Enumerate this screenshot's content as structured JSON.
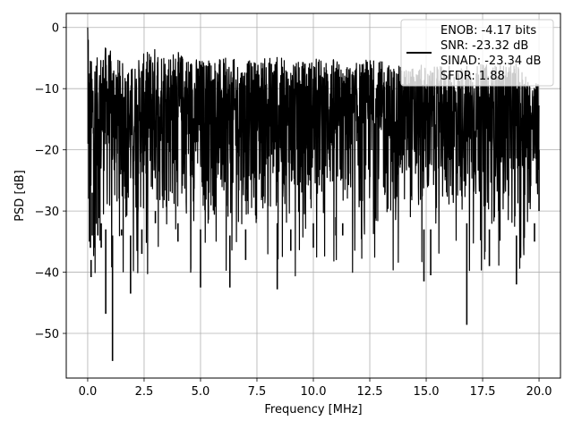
{
  "chart_data": {
    "type": "line",
    "title": "",
    "xlabel": "Frequency [MHz]",
    "ylabel": "PSD [dB]",
    "xlim": [
      -0.95,
      20.95
    ],
    "ylim": [
      -57.3,
      2.3
    ],
    "x_ticks": [
      0.0,
      2.5,
      5.0,
      7.5,
      10.0,
      12.5,
      15.0,
      17.5,
      20.0
    ],
    "x_tick_labels": [
      "0.0",
      "2.5",
      "5.0",
      "7.5",
      "10.0",
      "12.5",
      "15.0",
      "17.5",
      "20.0"
    ],
    "y_ticks": [
      0,
      -10,
      -20,
      -30,
      -40,
      -50
    ],
    "y_tick_labels": [
      "0",
      "−10",
      "−20",
      "−30",
      "−40",
      "−50"
    ],
    "grid": true,
    "legend_placement": "top-right",
    "legend_entries": [
      "ENOB: -4.17 bits",
      "SNR: -23.32 dB",
      "SINAD: -23.34 dB",
      "SFDR: 1.88"
    ],
    "line_color": "#000000",
    "grid_color": "#b0b0b0",
    "series": [
      {
        "x": [
          0.0,
          0.02,
          0.05,
          0.08,
          0.12,
          0.15,
          0.2,
          0.3,
          0.45,
          0.6,
          0.8,
          1.1,
          1.5,
          1.9,
          2.4,
          3.0,
          4.0,
          5.0,
          6.3,
          7.0,
          8.4,
          9.0,
          10.0,
          11.0,
          11.3,
          12.5,
          14.0,
          14.9,
          15.2,
          16.8,
          17.8,
          19.0,
          19.8,
          20.0
        ],
        "y": [
          0.0,
          -2.0,
          -13.0,
          -20.0,
          -16.0,
          -40.8,
          -27.0,
          -34.0,
          -18.0,
          -36.0,
          -46.8,
          -54.5,
          -34.0,
          -43.5,
          -37.0,
          -30.0,
          -35.0,
          -42.5,
          -42.5,
          -38.0,
          -42.8,
          -36.5,
          -36.0,
          -34.0,
          -34.0,
          -33.0,
          -32.0,
          -41.5,
          -40.5,
          -48.6,
          -39.0,
          -42.0,
          -35.0,
          -20.0
        ],
        "peaks": [
          0.0,
          -3.5,
          -8.0,
          -5.5,
          -4.0,
          -5.0,
          -5.5,
          -4.5,
          -5.0,
          -4.0,
          -3.0,
          -4.0,
          -5.5,
          -6.5,
          -4.5,
          -3.0,
          -4.0,
          -5.0,
          -5.0,
          -5.5,
          -4.5,
          -6.0,
          -5.0,
          -5.0,
          -6.5,
          -5.0,
          -6.5,
          -6.0,
          -6.5,
          -6.0,
          -6.0,
          -5.5,
          -9.0,
          -9.0
        ],
        "troughs": [
          0.0,
          -19.0,
          -28.0,
          -35.0,
          -36.0,
          -38.0,
          -34.0,
          -36.0,
          -34.0,
          -32.0,
          -33.0,
          -34.0,
          -33.0,
          -34.0,
          -33.0,
          -32.0,
          -32.0,
          -33.0,
          -34.0,
          -33.0,
          -32.0,
          -33.0,
          -32.0,
          -31.0,
          -32.0,
          -33.0,
          -32.0,
          -33.0,
          -33.0,
          -32.0,
          -33.0,
          -34.0,
          -32.0,
          -30.0
        ]
      }
    ]
  }
}
